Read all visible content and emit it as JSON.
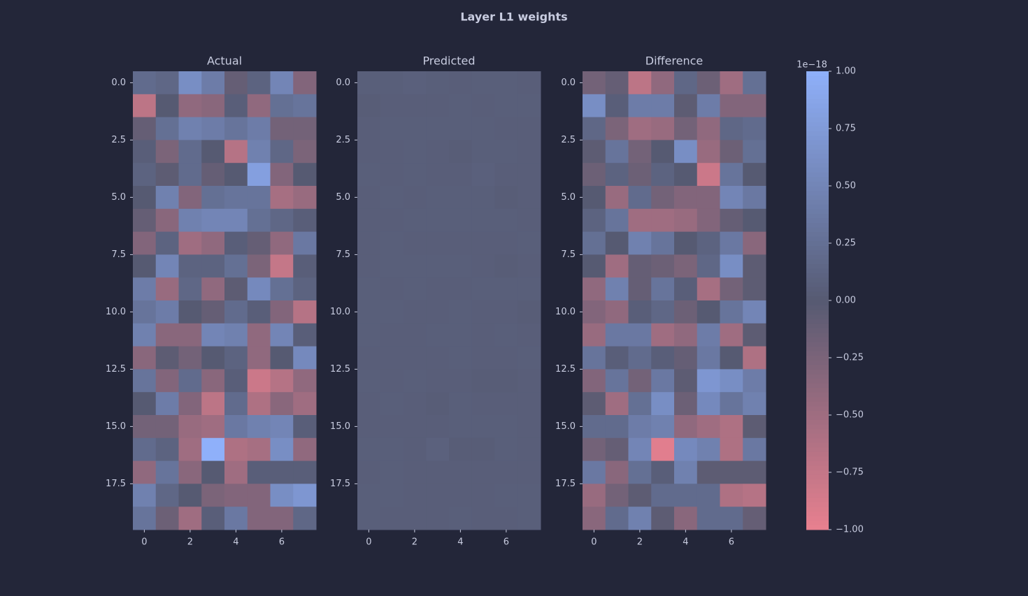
{
  "title": "Layer L1 weights",
  "colorbar": {
    "offset_label": "1e−18",
    "clim": [
      -1,
      1
    ],
    "colors": [
      "#e8808f",
      "#565a72",
      "#8fb0fa"
    ],
    "ticks": [
      {
        "value": -1,
        "label": "−1.00"
      },
      {
        "value": -0.75,
        "label": "−0.75"
      },
      {
        "value": -0.5,
        "label": "−0.50"
      },
      {
        "value": -0.25,
        "label": "−0.25"
      },
      {
        "value": 0,
        "label": "0.00"
      },
      {
        "value": 0.25,
        "label": "0.25"
      },
      {
        "value": 0.5,
        "label": "0.50"
      },
      {
        "value": 0.75,
        "label": "0.75"
      },
      {
        "value": 1,
        "label": "1.00"
      }
    ]
  },
  "chart_data": [
    {
      "type": "heatmap",
      "title": "Actual",
      "xlim": [
        -0.5,
        7.5
      ],
      "ylim": [
        19.5,
        -0.5
      ],
      "xticks": [
        0,
        2,
        4,
        6
      ],
      "yticks": [
        {
          "value": 0,
          "label": "0.0"
        },
        2.5,
        {
          "value": 5,
          "label": "5.0"
        },
        7.5,
        {
          "value": 10,
          "label": "10.0"
        },
        12.5,
        {
          "value": 15,
          "label": "15.0"
        },
        17.5
      ],
      "values": [
        [
          0.2,
          0.15,
          0.6,
          0.4,
          -0.1,
          0.1,
          0.5,
          -0.3
        ],
        [
          -0.7,
          0.0,
          -0.4,
          -0.35,
          0.05,
          -0.4,
          0.25,
          0.3
        ],
        [
          -0.1,
          0.25,
          0.45,
          0.4,
          0.3,
          0.4,
          -0.2,
          -0.2
        ],
        [
          0.05,
          -0.25,
          0.2,
          0.0,
          -0.65,
          0.45,
          0.15,
          -0.25
        ],
        [
          0.1,
          -0.05,
          0.2,
          -0.1,
          0.0,
          0.8,
          -0.3,
          0.0
        ],
        [
          0.0,
          0.45,
          -0.3,
          0.25,
          0.3,
          0.3,
          -0.55,
          -0.45
        ],
        [
          -0.1,
          -0.35,
          0.45,
          0.5,
          0.5,
          0.25,
          0.15,
          0.05
        ],
        [
          -0.3,
          0.1,
          -0.5,
          -0.4,
          0.05,
          -0.1,
          -0.4,
          0.35
        ],
        [
          0.0,
          0.5,
          0.1,
          0.1,
          0.25,
          -0.25,
          -0.75,
          0.05
        ],
        [
          0.4,
          -0.45,
          0.15,
          -0.4,
          -0.05,
          0.55,
          0.25,
          0.1
        ],
        [
          0.3,
          0.4,
          0.0,
          -0.1,
          0.2,
          0.05,
          -0.3,
          -0.65
        ],
        [
          0.45,
          -0.35,
          -0.35,
          0.5,
          0.45,
          -0.4,
          0.5,
          0.05
        ],
        [
          -0.35,
          -0.05,
          -0.2,
          0.0,
          0.1,
          -0.4,
          0.0,
          0.55
        ],
        [
          0.3,
          -0.3,
          0.2,
          -0.35,
          0.05,
          -0.8,
          -0.65,
          -0.4
        ],
        [
          0.0,
          0.4,
          -0.3,
          -0.7,
          0.2,
          -0.6,
          -0.35,
          -0.5
        ],
        [
          -0.2,
          -0.2,
          -0.45,
          -0.5,
          0.35,
          0.45,
          0.5,
          0.05
        ],
        [
          0.2,
          0.1,
          -0.5,
          1.0,
          -0.6,
          -0.55,
          0.6,
          -0.4
        ],
        [
          -0.4,
          0.3,
          -0.35,
          0.0,
          -0.5,
          0.05,
          0.05,
          0.05
        ],
        [
          0.45,
          0.15,
          0.0,
          -0.25,
          -0.3,
          -0.3,
          0.6,
          0.7
        ],
        [
          0.3,
          -0.15,
          -0.5,
          0.05,
          0.35,
          -0.3,
          -0.3,
          0.15
        ]
      ]
    },
    {
      "type": "heatmap",
      "title": "Predicted",
      "xlim": [
        -0.5,
        7.5
      ],
      "ylim": [
        19.5,
        -0.5
      ],
      "xticks": [
        0,
        2,
        4,
        6
      ],
      "yticks": [
        {
          "value": 0,
          "label": "0.0"
        },
        2.5,
        {
          "value": 5,
          "label": "5.0"
        },
        7.5,
        {
          "value": 10,
          "label": "10.0"
        },
        12.5,
        {
          "value": 15,
          "label": "15.0"
        },
        17.5
      ],
      "values": [
        [
          0.06,
          0.06,
          0.07,
          0.06,
          0.05,
          0.06,
          0.06,
          0.05
        ],
        [
          0.04,
          0.05,
          0.05,
          0.05,
          0.06,
          0.05,
          0.06,
          0.06
        ],
        [
          0.05,
          0.06,
          0.06,
          0.06,
          0.06,
          0.06,
          0.05,
          0.05
        ],
        [
          0.05,
          0.05,
          0.06,
          0.05,
          0.04,
          0.06,
          0.06,
          0.05
        ],
        [
          0.06,
          0.05,
          0.06,
          0.05,
          0.05,
          0.07,
          0.05,
          0.05
        ],
        [
          0.05,
          0.06,
          0.05,
          0.06,
          0.06,
          0.06,
          0.04,
          0.05
        ],
        [
          0.05,
          0.05,
          0.06,
          0.06,
          0.06,
          0.06,
          0.06,
          0.05
        ],
        [
          0.05,
          0.06,
          0.05,
          0.05,
          0.05,
          0.05,
          0.05,
          0.06
        ],
        [
          0.05,
          0.06,
          0.06,
          0.06,
          0.06,
          0.05,
          0.04,
          0.05
        ],
        [
          0.06,
          0.05,
          0.06,
          0.05,
          0.05,
          0.06,
          0.06,
          0.06
        ],
        [
          0.06,
          0.06,
          0.05,
          0.05,
          0.06,
          0.05,
          0.05,
          0.04
        ],
        [
          0.06,
          0.05,
          0.05,
          0.06,
          0.06,
          0.05,
          0.06,
          0.05
        ],
        [
          0.05,
          0.05,
          0.05,
          0.05,
          0.06,
          0.05,
          0.05,
          0.06
        ],
        [
          0.06,
          0.05,
          0.06,
          0.05,
          0.05,
          0.04,
          0.04,
          0.05
        ],
        [
          0.05,
          0.06,
          0.05,
          0.04,
          0.06,
          0.05,
          0.05,
          0.05
        ],
        [
          0.05,
          0.05,
          0.05,
          0.05,
          0.06,
          0.06,
          0.06,
          0.05
        ],
        [
          0.06,
          0.06,
          0.05,
          0.08,
          0.04,
          0.04,
          0.06,
          0.05
        ],
        [
          0.05,
          0.06,
          0.05,
          0.05,
          0.05,
          0.05,
          0.05,
          0.05
        ],
        [
          0.06,
          0.06,
          0.05,
          0.05,
          0.05,
          0.05,
          0.06,
          0.06
        ],
        [
          0.06,
          0.05,
          0.05,
          0.05,
          0.06,
          0.05,
          0.05,
          0.06
        ]
      ]
    },
    {
      "type": "heatmap",
      "title": "Difference",
      "xlim": [
        -0.5,
        7.5
      ],
      "ylim": [
        19.5,
        -0.5
      ],
      "xticks": [
        0,
        2,
        4,
        6
      ],
      "yticks": [
        {
          "value": 0,
          "label": "0.0"
        },
        2.5,
        {
          "value": 5,
          "label": "5.0"
        },
        7.5,
        {
          "value": 10,
          "label": "10.0"
        },
        12.5,
        {
          "value": 15,
          "label": "15.0"
        },
        17.5
      ],
      "values": [
        [
          -0.2,
          -0.1,
          -0.7,
          -0.4,
          0.15,
          -0.15,
          -0.5,
          0.25
        ],
        [
          0.6,
          0.05,
          0.4,
          0.4,
          -0.05,
          0.4,
          -0.3,
          -0.3
        ],
        [
          0.15,
          -0.25,
          -0.5,
          -0.45,
          -0.2,
          -0.4,
          0.15,
          0.2
        ],
        [
          -0.05,
          0.3,
          -0.2,
          0.0,
          0.6,
          -0.45,
          -0.15,
          0.25
        ],
        [
          -0.15,
          0.1,
          -0.15,
          0.1,
          0.0,
          -0.8,
          0.3,
          0.0
        ],
        [
          0.0,
          -0.45,
          0.2,
          -0.2,
          -0.3,
          -0.3,
          0.5,
          0.35
        ],
        [
          0.1,
          0.3,
          -0.5,
          -0.5,
          -0.45,
          -0.3,
          -0.1,
          0.0
        ],
        [
          0.25,
          0.0,
          0.45,
          0.3,
          0.0,
          0.1,
          0.35,
          -0.35
        ],
        [
          0.0,
          -0.5,
          -0.1,
          -0.15,
          -0.25,
          0.15,
          0.6,
          -0.05
        ],
        [
          -0.4,
          0.45,
          -0.1,
          0.3,
          0.05,
          -0.55,
          -0.2,
          -0.05
        ],
        [
          -0.3,
          -0.4,
          0.05,
          0.15,
          -0.15,
          0.0,
          0.3,
          0.5
        ],
        [
          -0.45,
          0.35,
          0.35,
          -0.5,
          -0.4,
          0.4,
          -0.5,
          -0.05
        ],
        [
          0.3,
          0.05,
          0.2,
          0.05,
          -0.1,
          0.35,
          0.0,
          -0.6
        ],
        [
          -0.3,
          0.3,
          -0.2,
          0.35,
          -0.05,
          0.7,
          0.6,
          0.4
        ],
        [
          -0.05,
          -0.5,
          0.25,
          0.6,
          -0.15,
          0.55,
          0.3,
          0.45
        ],
        [
          0.2,
          0.2,
          0.4,
          0.45,
          -0.4,
          -0.5,
          -0.6,
          -0.05
        ],
        [
          -0.2,
          -0.1,
          0.5,
          -0.95,
          0.55,
          0.45,
          -0.6,
          0.35
        ],
        [
          0.35,
          -0.35,
          0.25,
          0.05,
          0.45,
          -0.05,
          -0.05,
          -0.05
        ],
        [
          -0.45,
          -0.2,
          -0.05,
          0.2,
          0.2,
          0.2,
          -0.6,
          -0.65
        ],
        [
          -0.35,
          0.2,
          0.45,
          -0.05,
          -0.35,
          0.2,
          0.2,
          -0.1
        ]
      ]
    }
  ]
}
